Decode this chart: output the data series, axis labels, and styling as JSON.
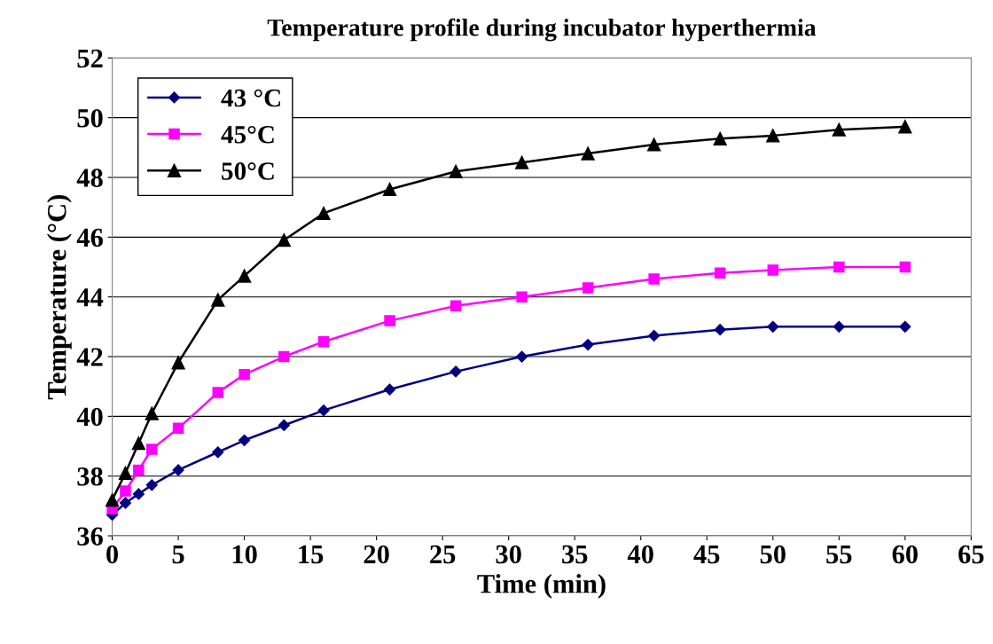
{
  "chart_data": {
    "type": "line",
    "title": "Temperature profile during incubator hyperthermia",
    "xlabel": "Time (min)",
    "ylabel": "Temperature (°C)",
    "x": [
      0,
      1,
      2,
      3,
      5,
      8,
      10,
      13,
      16,
      21,
      26,
      31,
      36,
      41,
      46,
      50,
      55,
      60
    ],
    "series": [
      {
        "name": "43 °C",
        "color": "#000080",
        "marker": "diamond",
        "values": [
          36.7,
          37.1,
          37.4,
          37.7,
          38.2,
          38.8,
          39.2,
          39.7,
          40.2,
          40.9,
          41.5,
          42.0,
          42.4,
          42.7,
          42.9,
          43.0,
          43.0,
          43.0
        ]
      },
      {
        "name": "45°C",
        "color": "#ff00ff",
        "marker": "square",
        "values": [
          36.9,
          37.5,
          38.2,
          38.9,
          39.6,
          40.8,
          41.4,
          42.0,
          42.5,
          43.2,
          43.7,
          44.0,
          44.3,
          44.6,
          44.8,
          44.9,
          45.0,
          45.0
        ]
      },
      {
        "name": "50°C",
        "color": "#000000",
        "marker": "triangle",
        "values": [
          37.2,
          38.1,
          39.1,
          40.1,
          41.8,
          43.9,
          44.7,
          45.9,
          46.8,
          47.6,
          48.2,
          48.5,
          48.8,
          49.1,
          49.3,
          49.4,
          49.6,
          49.7
        ]
      }
    ],
    "xlim": [
      0,
      65
    ],
    "xticks": [
      0,
      5,
      10,
      15,
      20,
      25,
      30,
      35,
      40,
      45,
      50,
      55,
      60,
      65
    ],
    "ylim": [
      36,
      52
    ],
    "yticks": [
      36,
      38,
      40,
      42,
      44,
      46,
      48,
      50,
      52
    ],
    "grid": "y",
    "legend": "top left",
    "line_style": "solid"
  }
}
